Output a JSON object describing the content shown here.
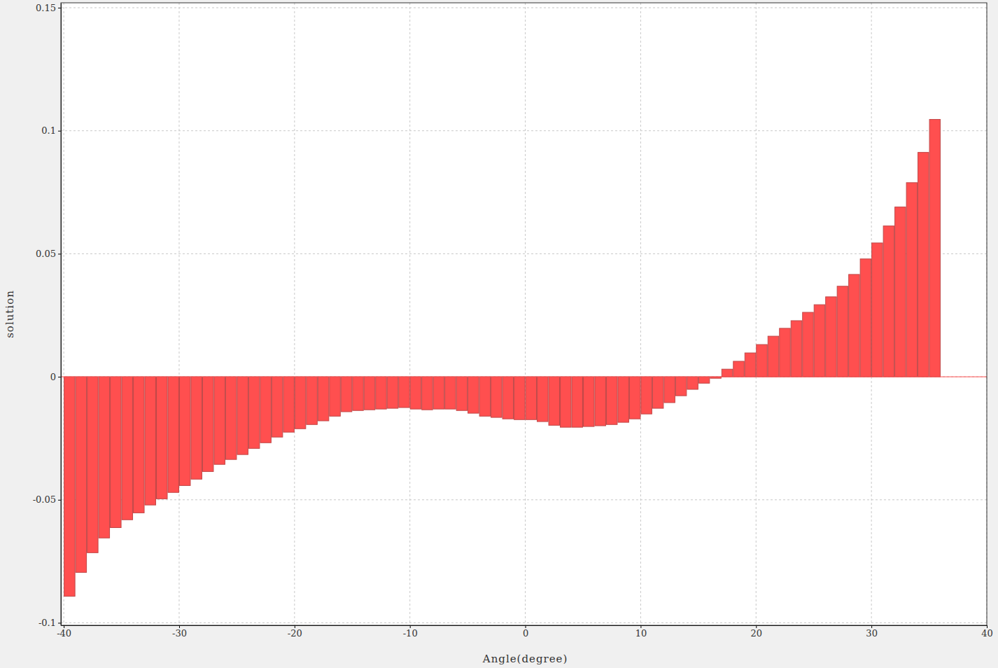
{
  "chart_data": {
    "type": "bar",
    "x_label": "Angle(degree)",
    "y_label": "solution",
    "x": [
      -40,
      -39,
      -38,
      -37,
      -36,
      -35,
      -34,
      -33,
      -32,
      -31,
      -30,
      -29,
      -28,
      -27,
      -26,
      -25,
      -24,
      -23,
      -22,
      -21,
      -20,
      -19,
      -18,
      -17,
      -16,
      -15,
      -14,
      -13,
      -12,
      -11,
      -10,
      -9,
      -8,
      -7,
      -6,
      -5,
      -4,
      -3,
      -2,
      -1,
      0,
      1,
      2,
      3,
      4,
      5,
      6,
      7,
      8,
      9,
      10,
      11,
      12,
      13,
      14,
      15,
      16,
      17,
      18,
      19,
      20,
      21,
      22,
      23,
      24,
      25,
      26,
      27,
      28,
      29,
      30,
      31,
      32,
      33,
      34,
      35
    ],
    "values": [
      -0.0892,
      -0.0795,
      -0.0715,
      -0.0655,
      -0.0613,
      -0.0581,
      -0.0553,
      -0.0521,
      -0.0496,
      -0.047,
      -0.0442,
      -0.0416,
      -0.0385,
      -0.0356,
      -0.0336,
      -0.0316,
      -0.0291,
      -0.0268,
      -0.0245,
      -0.0225,
      -0.0211,
      -0.0194,
      -0.0179,
      -0.016,
      -0.0142,
      -0.0137,
      -0.0134,
      -0.0131,
      -0.0128,
      -0.0125,
      -0.0131,
      -0.0134,
      -0.0131,
      -0.0131,
      -0.0137,
      -0.0148,
      -0.016,
      -0.0165,
      -0.0171,
      -0.0174,
      -0.0174,
      -0.0182,
      -0.0197,
      -0.0205,
      -0.0205,
      -0.0202,
      -0.0199,
      -0.0194,
      -0.0185,
      -0.0171,
      -0.0151,
      -0.0128,
      -0.0105,
      -0.0077,
      -0.0051,
      -0.0026,
      -0.0006,
      0.0031,
      0.0063,
      0.0097,
      0.0131,
      0.0165,
      0.0197,
      0.0228,
      0.0262,
      0.0293,
      0.0325,
      0.0368,
      0.0416,
      0.0479,
      0.0544,
      0.0613,
      0.069,
      0.0789,
      0.0912,
      0.1046
    ],
    "color": "#ff4f4f",
    "xlim": [
      -40.25,
      40
    ],
    "xticks": [
      -40,
      -30,
      -20,
      -10,
      0,
      10,
      20,
      30,
      40
    ],
    "ylim": [
      -0.101,
      0.152
    ],
    "yticks": [
      -0.1,
      -0.05,
      0,
      0.05,
      0.1,
      0.15
    ],
    "grid": true
  }
}
